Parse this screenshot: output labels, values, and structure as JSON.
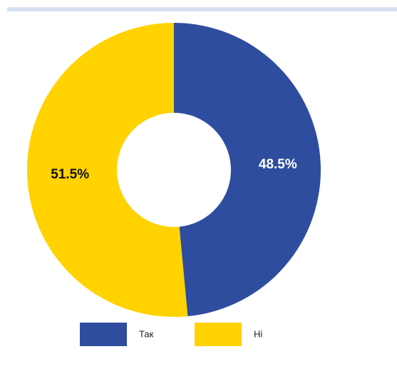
{
  "chart_data": {
    "type": "donut",
    "categories": [
      "Так",
      "Ні"
    ],
    "values": [
      48.5,
      51.5
    ],
    "value_labels": [
      "48.5%",
      "51.5%"
    ],
    "colors": [
      "#2e4d9e",
      "#ffd200"
    ],
    "label_colors": [
      "#ffffff",
      "#111111"
    ]
  }
}
